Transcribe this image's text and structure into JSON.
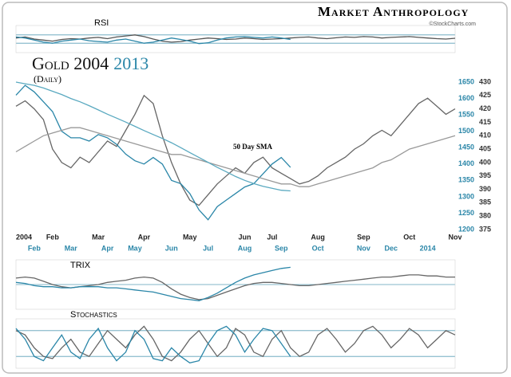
{
  "header": {
    "brand": "Market Anthropology",
    "credit": "©StockCharts.com"
  },
  "chart_data": [
    {
      "type": "line",
      "title": "RSI",
      "ylim": [
        0,
        100
      ],
      "levels": [
        30,
        70
      ],
      "series": [
        {
          "color": "#555555",
          "values": [
            55,
            60,
            50,
            45,
            40,
            48,
            52,
            50,
            55,
            58,
            52,
            60,
            65,
            70,
            62,
            50,
            40,
            35,
            38,
            45,
            50,
            55,
            52,
            48,
            50,
            55,
            52,
            48,
            50,
            52,
            55,
            58,
            60,
            55,
            52,
            56,
            60,
            58,
            62,
            60,
            55,
            58,
            60,
            62,
            58,
            55,
            52,
            50,
            54
          ]
        },
        {
          "color": "#2a86a8",
          "values": [
            60,
            55,
            45,
            35,
            30,
            40,
            45,
            50,
            42,
            38,
            35,
            45,
            50,
            40,
            30,
            35,
            45,
            55,
            48,
            40,
            28,
            32,
            45,
            55,
            60,
            62,
            58,
            55,
            60,
            55,
            48,
            null,
            null,
            null,
            null,
            null,
            null,
            null,
            null,
            null,
            null,
            null,
            null,
            null,
            null,
            null,
            null,
            null,
            null
          ]
        }
      ]
    },
    {
      "type": "line",
      "title": "Gold 2004",
      "title_highlight": "2013",
      "subtitle": "(Daily)",
      "annotation": "50 Day SMA",
      "categories": [
        "2004",
        null,
        null,
        null,
        "Feb",
        null,
        null,
        null,
        null,
        "Mar",
        null,
        null,
        null,
        null,
        "Apr",
        null,
        null,
        null,
        null,
        "May",
        null,
        null,
        null,
        null,
        null,
        "Jun",
        null,
        null,
        "Jul",
        null,
        null,
        null,
        null,
        "Aug",
        null,
        null,
        null,
        null,
        "Sep",
        null,
        null,
        null,
        null,
        "Oct",
        null,
        null,
        null,
        null,
        "Nov"
      ],
      "categories2": [
        null,
        null,
        "Feb",
        null,
        null,
        null,
        "Mar",
        null,
        null,
        null,
        "Apr",
        null,
        null,
        "May",
        null,
        null,
        null,
        "Jun",
        null,
        null,
        null,
        "Jul",
        null,
        null,
        null,
        "Aug",
        null,
        null,
        null,
        "Sep",
        null,
        null,
        null,
        "Oct",
        null,
        null,
        null,
        null,
        "Nov",
        null,
        null,
        "Dec",
        null,
        null,
        null,
        "2014",
        null,
        null,
        null
      ],
      "ylim": [
        375,
        430
      ],
      "yticks": [
        375,
        380,
        385,
        390,
        395,
        400,
        405,
        410,
        415,
        420,
        425,
        430
      ],
      "y2lim": [
        1200,
        1650
      ],
      "y2ticks": [
        1200,
        1250,
        1300,
        1350,
        1400,
        1450,
        1500,
        1550,
        1600,
        1650
      ],
      "series": [
        {
          "color": "#666666",
          "values": [
            421,
            423,
            420,
            416,
            405,
            400,
            398,
            402,
            400,
            404,
            408,
            406,
            412,
            418,
            425,
            422,
            410,
            400,
            392,
            386,
            384,
            388,
            392,
            395,
            398,
            396,
            400,
            402,
            398,
            396,
            394,
            392,
            393,
            395,
            398,
            400,
            402,
            405,
            407,
            410,
            412,
            410,
            414,
            418,
            422,
            424,
            421,
            418,
            420
          ]
        },
        {
          "color": "#2a86a8",
          "axis": "y2",
          "values": [
            1610,
            1640,
            1620,
            1590,
            1560,
            1500,
            1480,
            1480,
            1470,
            1490,
            1480,
            1460,
            1430,
            1410,
            1400,
            1420,
            1400,
            1350,
            1340,
            1310,
            1260,
            1230,
            1270,
            1290,
            1310,
            1330,
            1340,
            1370,
            1400,
            1420,
            1390,
            null,
            null,
            null,
            null,
            null,
            null,
            null,
            null,
            null,
            null,
            null,
            null,
            null,
            null,
            null,
            null,
            null,
            null
          ]
        },
        {
          "color": "#999999",
          "values": [
            404,
            406,
            408,
            410,
            411,
            412,
            413,
            413,
            412,
            411,
            410,
            409,
            408,
            407,
            406,
            405,
            404,
            403,
            403,
            402,
            401,
            400,
            399,
            398,
            397,
            396,
            395,
            394,
            393,
            392,
            392,
            391,
            391,
            392,
            393,
            394,
            395,
            396,
            397,
            398,
            400,
            401,
            403,
            405,
            406,
            407,
            408,
            409,
            410
          ]
        },
        {
          "color": "#5aa9c0",
          "axis": "y2",
          "values": [
            1650,
            1645,
            1640,
            1632,
            1622,
            1612,
            1600,
            1590,
            1578,
            1565,
            1552,
            1540,
            1528,
            1515,
            1502,
            1490,
            1478,
            1465,
            1450,
            1435,
            1420,
            1405,
            1390,
            1376,
            1362,
            1350,
            1340,
            1332,
            1326,
            1320,
            1318,
            null,
            null,
            null,
            null,
            null,
            null,
            null,
            null,
            null,
            null,
            null,
            null,
            null,
            null,
            null,
            null,
            null,
            null
          ]
        }
      ]
    },
    {
      "type": "line",
      "title": "TRIX",
      "ylim": [
        -1,
        1
      ],
      "levels": [
        0
      ],
      "series": [
        {
          "color": "#666666",
          "values": [
            0.3,
            0.35,
            0.3,
            0.15,
            0,
            -0.1,
            -0.15,
            -0.1,
            -0.05,
            0,
            0.1,
            0.15,
            0.2,
            0.3,
            0.35,
            0.3,
            0.1,
            -0.2,
            -0.45,
            -0.6,
            -0.7,
            -0.65,
            -0.5,
            -0.35,
            -0.2,
            -0.05,
            0.05,
            0.1,
            0.1,
            0.05,
            0,
            -0.05,
            -0.05,
            0,
            0.05,
            0.1,
            0.15,
            0.2,
            0.25,
            0.3,
            0.35,
            0.35,
            0.4,
            0.45,
            0.45,
            0.4,
            0.4,
            0.35,
            0.35
          ]
        },
        {
          "color": "#2a86a8",
          "values": [
            0.1,
            0.05,
            -0.05,
            -0.1,
            -0.1,
            -0.15,
            -0.15,
            -0.1,
            -0.1,
            -0.1,
            -0.15,
            -0.15,
            -0.2,
            -0.25,
            -0.3,
            -0.35,
            -0.45,
            -0.55,
            -0.65,
            -0.7,
            -0.75,
            -0.6,
            -0.4,
            -0.15,
            0.1,
            0.3,
            0.45,
            0.55,
            0.65,
            0.75,
            0.8,
            null,
            null,
            null,
            null,
            null,
            null,
            null,
            null,
            null,
            null,
            null,
            null,
            null,
            null,
            null,
            null,
            null,
            null
          ]
        }
      ]
    },
    {
      "type": "line",
      "title": "Stochastics",
      "ylim": [
        0,
        100
      ],
      "levels": [
        20,
        80
      ],
      "series": [
        {
          "color": "#666666",
          "values": [
            80,
            70,
            40,
            20,
            15,
            40,
            60,
            30,
            20,
            50,
            80,
            60,
            40,
            70,
            90,
            60,
            20,
            10,
            30,
            60,
            80,
            50,
            20,
            40,
            85,
            70,
            30,
            20,
            60,
            80,
            40,
            20,
            30,
            70,
            85,
            60,
            30,
            50,
            80,
            90,
            70,
            40,
            60,
            85,
            70,
            40,
            60,
            80,
            70
          ]
        },
        {
          "color": "#2a86a8",
          "values": [
            85,
            60,
            20,
            10,
            40,
            70,
            30,
            15,
            60,
            85,
            40,
            10,
            30,
            80,
            60,
            15,
            10,
            40,
            20,
            5,
            10,
            50,
            80,
            90,
            70,
            30,
            60,
            85,
            80,
            50,
            20,
            null,
            null,
            null,
            null,
            null,
            null,
            null,
            null,
            null,
            null,
            null,
            null,
            null,
            null,
            null,
            null,
            null,
            null
          ]
        }
      ]
    }
  ]
}
